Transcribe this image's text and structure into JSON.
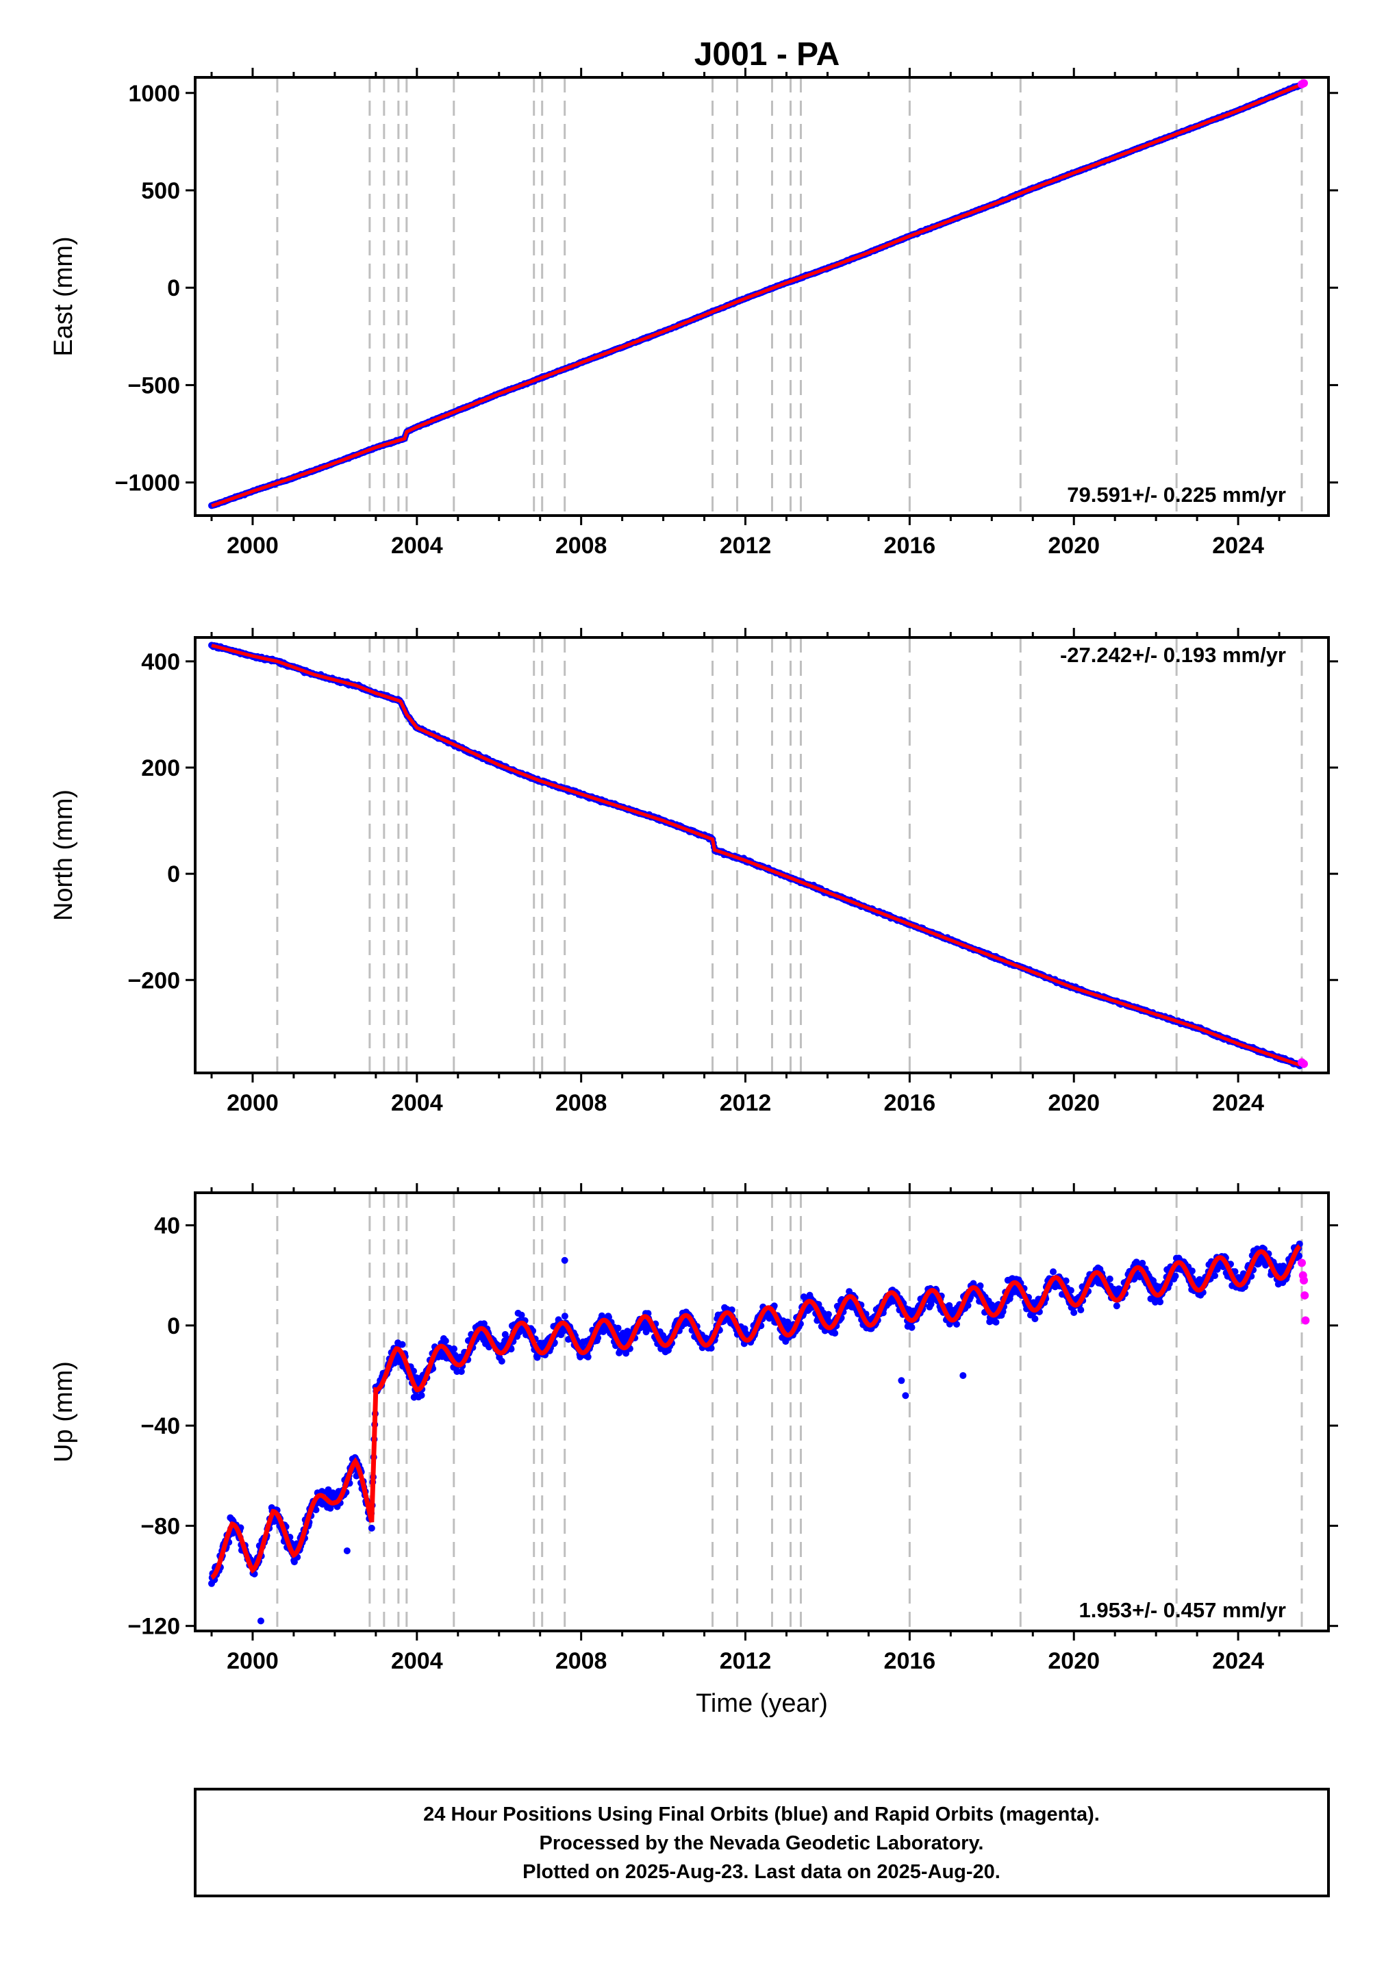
{
  "title": "J001 - PA",
  "footer": {
    "line1": "24 Hour Positions Using Final Orbits (blue) and Rapid Orbits (magenta).",
    "line2": "Processed by the Nevada Geodetic Laboratory.",
    "line3": "Plotted on 2025-Aug-23. Last data on 2025-Aug-20."
  },
  "colors": {
    "final_orbits": "#0000ff",
    "rapid_orbits": "#ff00ff",
    "model_fit": "#ff0000",
    "event_lines": "#bfbfbf",
    "frame": "#000000"
  },
  "chart_data": [
    {
      "type": "scatter",
      "panel": "east",
      "ylabel": "East (mm)",
      "xlabel": "",
      "xlim": [
        1998.6,
        2026.2
      ],
      "ylim": [
        -1170,
        1080
      ],
      "yticks": [
        -1000,
        -500,
        0,
        500,
        1000
      ],
      "ytick_labels": [
        "−1000",
        "−500",
        "0",
        "500",
        "1000"
      ],
      "xticks": [
        2000,
        2004,
        2008,
        2012,
        2016,
        2020,
        2024
      ],
      "xtick_labels": [
        "2000",
        "2004",
        "2008",
        "2012",
        "2016",
        "2020",
        "2024"
      ],
      "rate_label": "79.591+/- 0.225 mm/yr",
      "rate_position": "bottom-right",
      "series": [
        {
          "role": "final_orbits",
          "x": [
            1999.0,
            2000.0,
            2001.0,
            2002.0,
            2003.0,
            2003.7,
            2003.75,
            2004.0,
            2005.0,
            2006.0,
            2007.0,
            2008.0,
            2009.0,
            2010.0,
            2011.0,
            2012.0,
            2013.0,
            2014.0,
            2015.0,
            2016.0,
            2017.0,
            2018.0,
            2019.0,
            2020.0,
            2021.0,
            2022.0,
            2023.0,
            2024.0,
            2025.5
          ],
          "y": [
            -1120,
            -1045,
            -975,
            -900,
            -820,
            -775,
            -740,
            -715,
            -630,
            -545,
            -465,
            -385,
            -305,
            -225,
            -140,
            -55,
            25,
            100,
            180,
            265,
            345,
            425,
            510,
            590,
            670,
            750,
            830,
            910,
            1040
          ]
        },
        {
          "role": "rapid_orbits",
          "x": [
            2025.55,
            2025.6
          ],
          "y": [
            1045,
            1050
          ]
        }
      ]
    },
    {
      "type": "scatter",
      "panel": "north",
      "ylabel": "North (mm)",
      "xlabel": "",
      "xlim": [
        1998.6,
        2026.2
      ],
      "ylim": [
        -375,
        445
      ],
      "yticks": [
        -200,
        0,
        200,
        400
      ],
      "ytick_labels": [
        "−200",
        "0",
        "200",
        "400"
      ],
      "xticks": [
        2000,
        2004,
        2008,
        2012,
        2016,
        2020,
        2024
      ],
      "xtick_labels": [
        "2000",
        "2004",
        "2008",
        "2012",
        "2016",
        "2020",
        "2024"
      ],
      "rate_label": "-27.242+/- 0.193 mm/yr",
      "rate_position": "top-right",
      "series": [
        {
          "role": "final_orbits",
          "x": [
            1999.0,
            2000.0,
            2000.6,
            2001.5,
            2002.5,
            2003.0,
            2003.6,
            2003.75,
            2004.0,
            2005.0,
            2006.0,
            2007.0,
            2008.0,
            2009.0,
            2010.0,
            2011.2,
            2011.25,
            2012.0,
            2013.0,
            2014.0,
            2015.0,
            2016.0,
            2017.0,
            2018.0,
            2019.0,
            2020.0,
            2021.0,
            2022.0,
            2023.0,
            2024.0,
            2025.5
          ],
          "y": [
            430,
            410,
            400,
            375,
            355,
            340,
            325,
            300,
            275,
            240,
            205,
            175,
            150,
            125,
            100,
            65,
            45,
            25,
            -5,
            -35,
            -65,
            -95,
            -125,
            -155,
            -185,
            -215,
            -240,
            -265,
            -290,
            -320,
            -360
          ]
        },
        {
          "role": "rapid_orbits",
          "x": [
            2025.55,
            2025.6
          ],
          "y": [
            -355,
            -358
          ]
        }
      ]
    },
    {
      "type": "scatter",
      "panel": "up",
      "ylabel": "Up (mm)",
      "xlabel": "Time (year)",
      "xlim": [
        1998.6,
        2026.2
      ],
      "ylim": [
        -122,
        53
      ],
      "yticks": [
        -120,
        -80,
        -40,
        0,
        40
      ],
      "ytick_labels": [
        "−120",
        "−80",
        "−40",
        "0",
        "40"
      ],
      "xticks": [
        2000,
        2004,
        2008,
        2012,
        2016,
        2020,
        2024
      ],
      "xtick_labels": [
        "2000",
        "2004",
        "2008",
        "2012",
        "2016",
        "2020",
        "2024"
      ],
      "rate_label": "1.953+/- 0.457 mm/yr",
      "rate_position": "bottom-right",
      "series": [
        {
          "role": "final_orbits",
          "x": [
            1999.0,
            1999.5,
            2000.0,
            2000.5,
            2001.0,
            2001.5,
            2002.0,
            2002.5,
            2002.9,
            2003.0,
            2003.5,
            2004.0,
            2005.0,
            2006.0,
            2007.0,
            2008.0,
            2009.0,
            2010.0,
            2011.0,
            2012.0,
            2013.0,
            2014.0,
            2015.0,
            2016.0,
            2017.0,
            2018.0,
            2019.0,
            2020.0,
            2021.0,
            2022.0,
            2023.0,
            2024.0,
            2025.5
          ],
          "y": [
            -95,
            -85,
            -92,
            -80,
            -86,
            -76,
            -65,
            -60,
            -75,
            -20,
            -15,
            -20,
            -10,
            -5,
            -5,
            -5,
            -3,
            -2,
            -2,
            0,
            2,
            5,
            6,
            8,
            8,
            10,
            12,
            14,
            16,
            18,
            20,
            22,
            26
          ]
        },
        {
          "role": "rapid_orbits",
          "x": [
            2025.55,
            2025.58,
            2025.6,
            2025.62,
            2025.64
          ],
          "y": [
            25,
            20,
            18,
            12,
            2
          ]
        }
      ]
    }
  ],
  "event_lines_years": [
    2000.6,
    2002.85,
    2003.2,
    2003.55,
    2003.75,
    2004.9,
    2006.85,
    2007.05,
    2007.6,
    2011.2,
    2011.8,
    2012.65,
    2013.1,
    2013.35,
    2016.0,
    2018.7,
    2022.5,
    2025.55
  ]
}
